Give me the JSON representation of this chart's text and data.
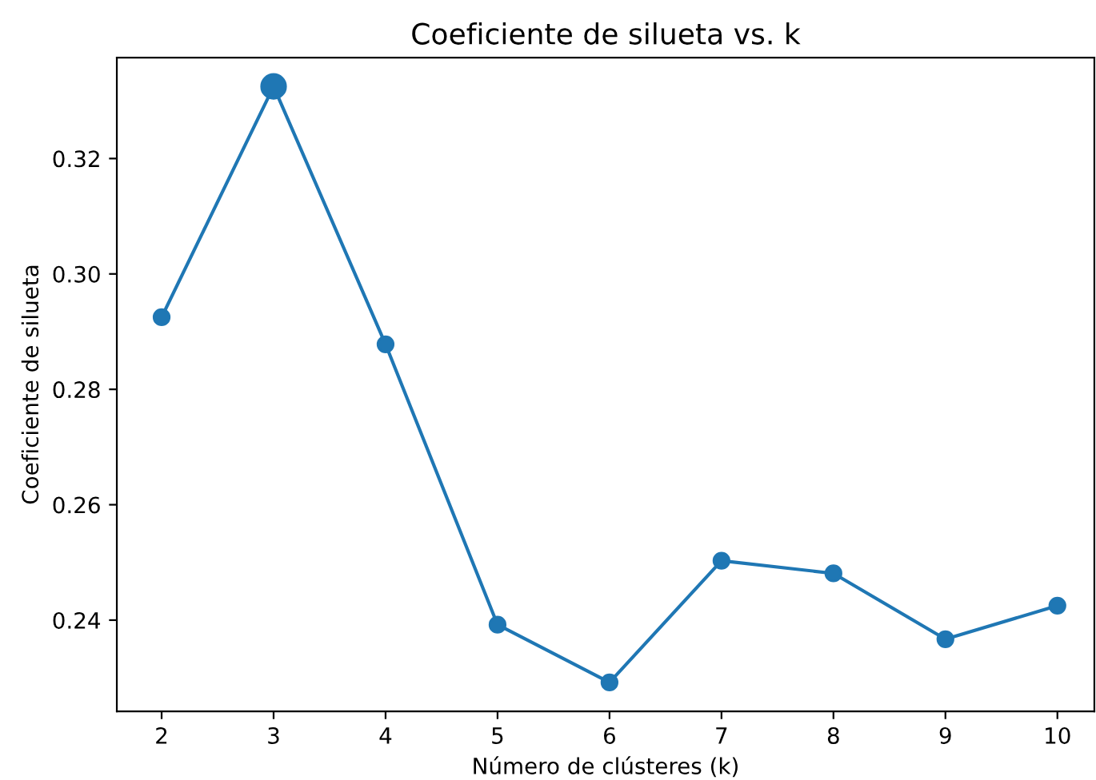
{
  "chart_data": {
    "type": "line",
    "title": "Coeficiente de silueta vs. k",
    "xlabel": "Número de clústeres (k)",
    "ylabel": "Coeficiente de silueta",
    "x": [
      2,
      3,
      4,
      5,
      6,
      7,
      8,
      9,
      10
    ],
    "series": [
      {
        "color": "#1f77b4",
        "values": [
          0.2925,
          0.3325,
          0.2878,
          0.2392,
          0.2292,
          0.2503,
          0.2481,
          0.2367,
          0.2425
        ]
      },
      {
        "type": "scatter",
        "color": "#1f77b4",
        "x": [
          3
        ],
        "values": [
          0.3325
        ]
      }
    ],
    "xlim": [
      1.6,
      10.33
    ],
    "xticks": [
      2,
      3,
      4,
      5,
      6,
      7,
      8,
      9,
      10
    ],
    "ylim": [
      0.2242,
      0.3375
    ],
    "yticks": [
      {
        "value": 0.24,
        "label": "0.24"
      },
      {
        "value": 0.26,
        "label": "0.26"
      },
      {
        "value": 0.28,
        "label": "0.28"
      },
      {
        "value": 0.3,
        "label": "0.30"
      },
      {
        "value": 0.32,
        "label": "0.32"
      }
    ],
    "marker": "circle",
    "line_style": "solid",
    "grid": false,
    "legend": false
  }
}
